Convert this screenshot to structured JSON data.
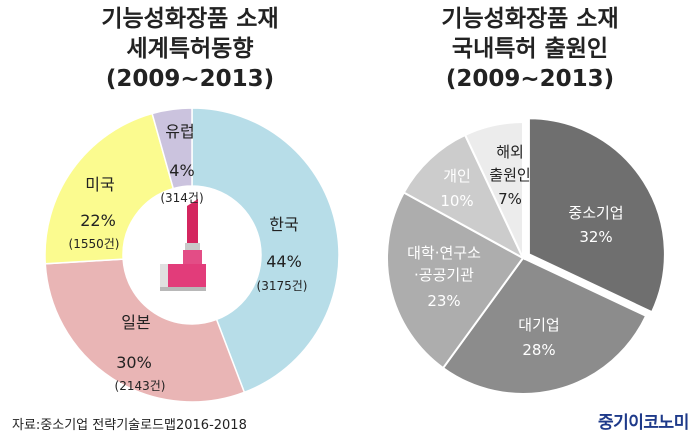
{
  "footer": {
    "source": "자료:중소기업 전략기술로드맵2016-2018",
    "logo": "중기이코노미"
  },
  "colors": {
    "korea": "#b7dde8",
    "japan": "#e9b5b5",
    "usa": "#fbfb8f",
    "europe": "#cbc3de",
    "sme": "#6f6f6f",
    "large": "#8c8c8c",
    "univ": "#adadad",
    "individual": "#cccccc",
    "foreign": "#ececec",
    "logo": "#1e3a8a"
  },
  "chart_data": [
    {
      "type": "pie",
      "donut": true,
      "title_lines": [
        "기능성화장품 소재",
        "세계특허동향",
        "(2009~2013)"
      ],
      "slices": [
        {
          "key": "korea",
          "name": "한국",
          "percent": "44%",
          "count": "(3175건)",
          "value": 3175,
          "color": "#b7dde8"
        },
        {
          "key": "japan",
          "name": "일본",
          "percent": "30%",
          "count": "(2143건)",
          "value": 2143,
          "color": "#e9b5b5"
        },
        {
          "key": "usa",
          "name": "미국",
          "percent": "22%",
          "count": "(1550건)",
          "value": 1550,
          "color": "#fbfb8f"
        },
        {
          "key": "europe",
          "name": "유럽",
          "percent": "4%",
          "count": "(314건)",
          "value": 314,
          "color": "#cbc3de"
        }
      ]
    },
    {
      "type": "pie",
      "title_lines": [
        "기능성화장품 소재",
        "국내특허 출원인",
        "(2009~2013)"
      ],
      "slices": [
        {
          "key": "sme",
          "name_lines": [
            "중소기업"
          ],
          "percent": "32%",
          "value": 32,
          "color": "#6f6f6f",
          "exploded": true
        },
        {
          "key": "large",
          "name_lines": [
            "대기업"
          ],
          "percent": "28%",
          "value": 28,
          "color": "#8c8c8c"
        },
        {
          "key": "univ",
          "name_lines": [
            "대학·연구소",
            "·공공기관"
          ],
          "percent": "23%",
          "value": 23,
          "color": "#adadad"
        },
        {
          "key": "individual",
          "name_lines": [
            "개인"
          ],
          "percent": "10%",
          "value": 10,
          "color": "#cccccc"
        },
        {
          "key": "foreign",
          "name_lines": [
            "해외",
            "출원인"
          ],
          "percent": "7%",
          "value": 7,
          "color": "#ececec"
        }
      ]
    }
  ]
}
